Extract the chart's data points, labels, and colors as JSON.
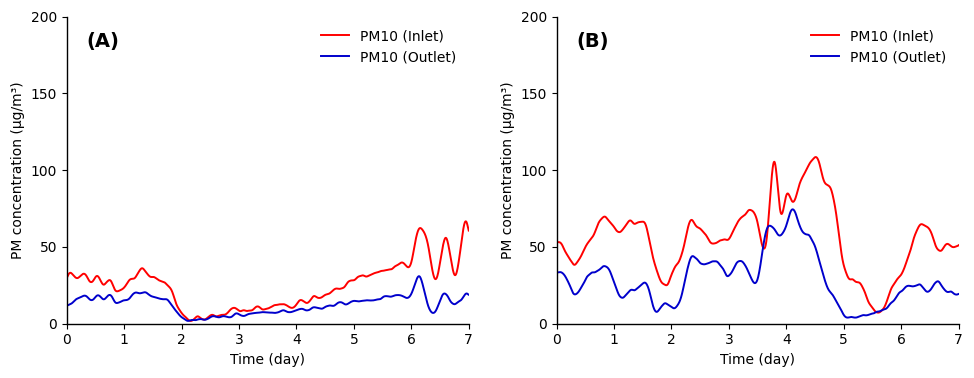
{
  "title_A": "(A)",
  "title_B": "(B)",
  "xlabel": "Time (day)",
  "ylabel": "PM concentration (μg/m³)",
  "legend_inlet": "PM10 (Inlet)",
  "legend_outlet": "PM10 (Outlet)",
  "inlet_color": "#ff0000",
  "outlet_color": "#0000cc",
  "xlim": [
    0,
    7
  ],
  "ylim": [
    0,
    200
  ],
  "yticks": [
    0,
    50,
    100,
    150,
    200
  ],
  "xticks": [
    0,
    1,
    2,
    3,
    4,
    5,
    6,
    7
  ],
  "linewidth": 1.4,
  "label_fontsize": 10,
  "tick_fontsize": 10,
  "legend_fontsize": 10,
  "panel_label_fontsize": 14,
  "A_inlet_knots_t": [
    0.0,
    0.1,
    0.2,
    0.35,
    0.45,
    0.55,
    0.65,
    0.75,
    0.85,
    1.0,
    1.15,
    1.3,
    1.5,
    1.65,
    1.8,
    2.0,
    2.15,
    2.3,
    2.5,
    2.7,
    2.9,
    3.1,
    3.3,
    3.5,
    3.7,
    3.9,
    4.1,
    4.3,
    4.5,
    4.7,
    4.85,
    5.0,
    5.15,
    5.3,
    5.5,
    5.65,
    5.8,
    6.0,
    6.15,
    6.3,
    6.45,
    6.6,
    6.75,
    6.9,
    7.0
  ],
  "A_inlet_knots_v": [
    30,
    33,
    28,
    32,
    27,
    30,
    25,
    28,
    22,
    25,
    28,
    35,
    30,
    28,
    23,
    5,
    4,
    3,
    5,
    6,
    8,
    9,
    10,
    10,
    12,
    12,
    14,
    16,
    18,
    22,
    26,
    28,
    30,
    32,
    35,
    37,
    38,
    42,
    62,
    48,
    30,
    58,
    30,
    60,
    60
  ],
  "A_outlet_knots_t": [
    0.0,
    0.1,
    0.2,
    0.35,
    0.45,
    0.55,
    0.65,
    0.75,
    0.85,
    1.0,
    1.15,
    1.3,
    1.5,
    1.65,
    1.8,
    2.0,
    2.15,
    2.3,
    2.5,
    2.7,
    2.9,
    3.1,
    3.3,
    3.5,
    3.7,
    3.9,
    4.1,
    4.3,
    4.5,
    4.7,
    4.85,
    5.0,
    5.15,
    5.3,
    5.5,
    5.65,
    5.8,
    6.0,
    6.15,
    6.3,
    6.45,
    6.6,
    6.75,
    6.9,
    7.0
  ],
  "A_outlet_knots_v": [
    12,
    14,
    16,
    18,
    16,
    18,
    16,
    18,
    14,
    16,
    18,
    20,
    18,
    16,
    14,
    4,
    3,
    2,
    4,
    5,
    5,
    6,
    7,
    7,
    8,
    8,
    9,
    10,
    11,
    12,
    14,
    14,
    15,
    16,
    17,
    18,
    18,
    20,
    30,
    10,
    10,
    20,
    12,
    18,
    18
  ],
  "B_inlet_knots_t": [
    0.0,
    0.1,
    0.2,
    0.35,
    0.5,
    0.65,
    0.8,
    0.95,
    1.1,
    1.25,
    1.4,
    1.55,
    1.7,
    1.85,
    2.0,
    2.15,
    2.3,
    2.5,
    2.7,
    2.85,
    3.0,
    3.15,
    3.3,
    3.5,
    3.65,
    3.8,
    3.9,
    4.0,
    4.1,
    4.2,
    4.3,
    4.5,
    4.65,
    4.8,
    4.95,
    5.1,
    5.3,
    5.5,
    5.7,
    5.9,
    6.0,
    6.2,
    6.4,
    6.6,
    6.8,
    7.0
  ],
  "B_inlet_knots_v": [
    53,
    50,
    45,
    38,
    50,
    60,
    68,
    65,
    58,
    66,
    68,
    63,
    40,
    27,
    30,
    42,
    62,
    63,
    53,
    56,
    54,
    65,
    70,
    68,
    54,
    104,
    72,
    85,
    80,
    87,
    95,
    110,
    95,
    85,
    50,
    28,
    25,
    10,
    12,
    27,
    30,
    55,
    65,
    52,
    50,
    52
  ],
  "B_outlet_knots_t": [
    0.0,
    0.1,
    0.2,
    0.35,
    0.5,
    0.65,
    0.8,
    0.95,
    1.1,
    1.25,
    1.4,
    1.55,
    1.7,
    1.85,
    2.0,
    2.15,
    2.3,
    2.5,
    2.7,
    2.85,
    3.0,
    3.15,
    3.3,
    3.5,
    3.65,
    3.8,
    3.9,
    4.0,
    4.1,
    4.2,
    4.3,
    4.5,
    4.65,
    4.8,
    4.95,
    5.1,
    5.3,
    5.5,
    5.7,
    5.9,
    6.0,
    6.2,
    6.4,
    6.6,
    6.8,
    7.0
  ],
  "B_outlet_knots_v": [
    35,
    32,
    26,
    20,
    28,
    33,
    36,
    33,
    18,
    20,
    22,
    25,
    12,
    10,
    12,
    15,
    38,
    40,
    40,
    38,
    32,
    40,
    38,
    28,
    60,
    62,
    58,
    65,
    72,
    68,
    60,
    50,
    30,
    20,
    8,
    5,
    5,
    6,
    8,
    18,
    22,
    25,
    22,
    25,
    22,
    22
  ]
}
